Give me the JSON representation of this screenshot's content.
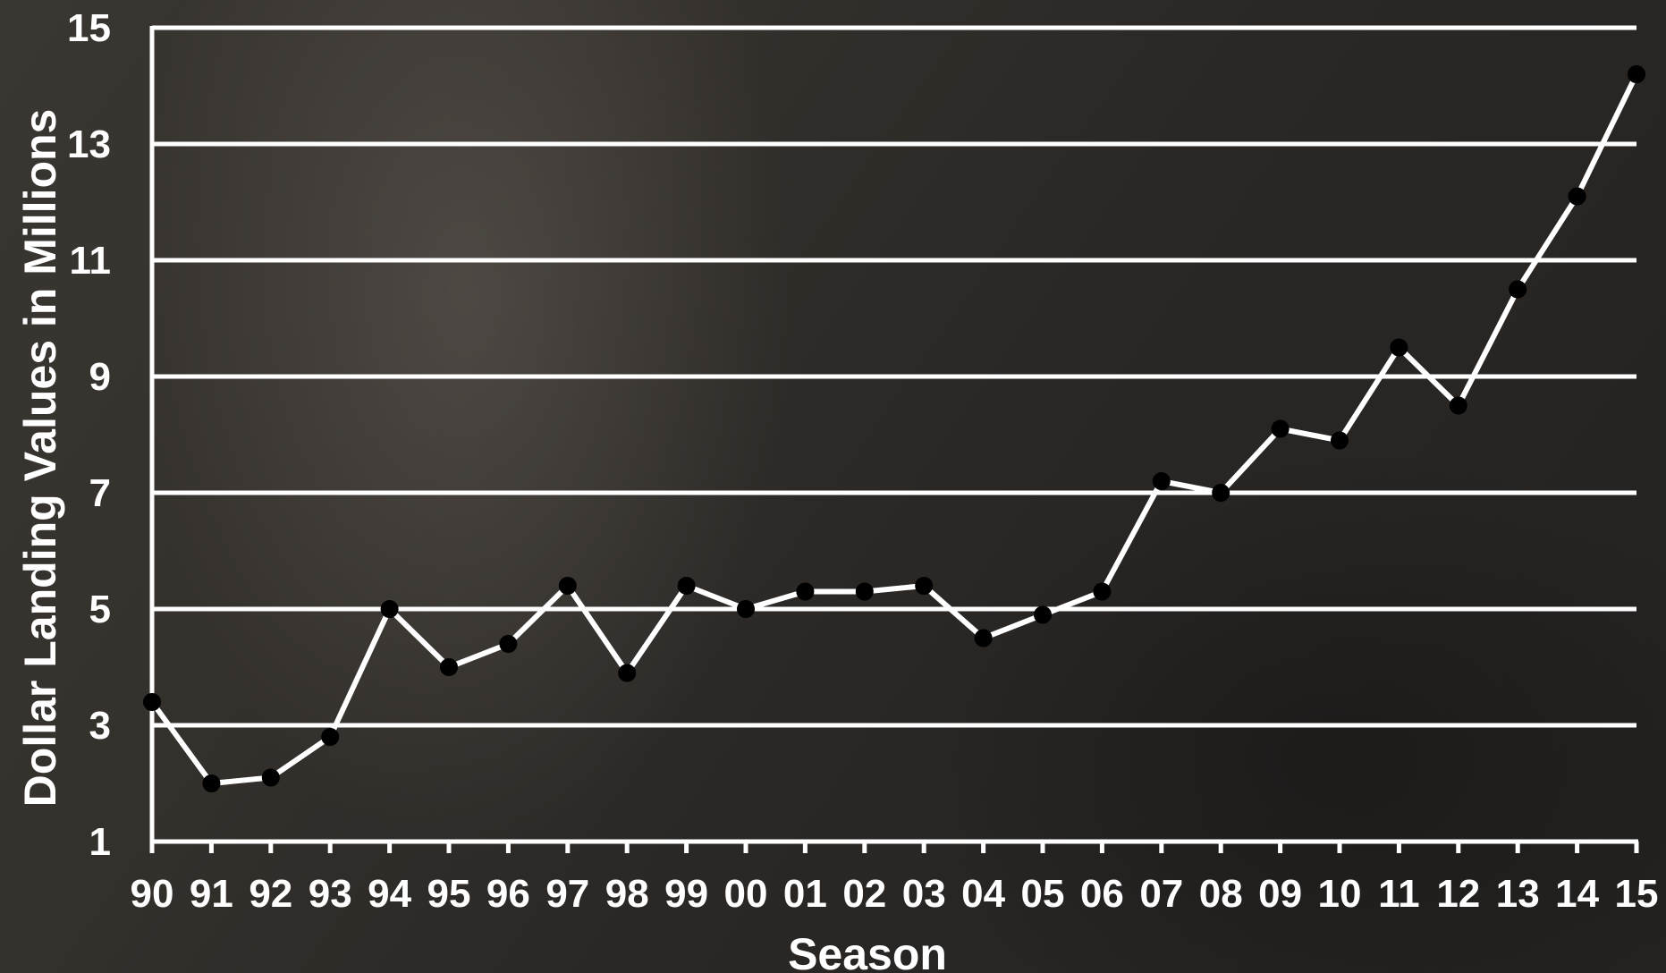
{
  "chart_data": {
    "type": "line",
    "title": "",
    "xlabel": "Season",
    "ylabel": "Dollar Landing Values in Millions",
    "categories": [
      "90",
      "91",
      "92",
      "93",
      "94",
      "95",
      "96",
      "97",
      "98",
      "99",
      "00",
      "01",
      "02",
      "03",
      "04",
      "05",
      "06",
      "07",
      "08",
      "09",
      "10",
      "11",
      "12",
      "13",
      "14",
      "15"
    ],
    "series": [
      {
        "values": [
          3.4,
          2.0,
          2.1,
          2.8,
          5.0,
          4.0,
          4.4,
          5.4,
          3.9,
          5.4,
          5.0,
          5.3,
          5.3,
          5.4,
          4.5,
          4.9,
          5.3,
          7.2,
          7.0,
          8.1,
          7.9,
          9.5,
          8.5,
          10.5,
          12.1,
          14.2
        ]
      }
    ],
    "yticks": [
      1,
      3,
      5,
      7,
      9,
      11,
      13,
      15
    ],
    "ylim": [
      1,
      15
    ],
    "grid": true,
    "colors": {
      "line": "#ffffff",
      "marker": "#000000",
      "grid": "#ffffff",
      "text": "#ffffff"
    }
  }
}
